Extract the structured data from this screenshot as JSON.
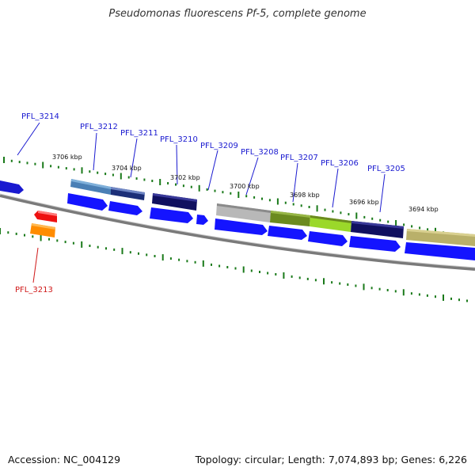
{
  "title": "Pseudomonas fluorescens Pf-5, complete genome",
  "footer": {
    "accession": "Accession: NC_004129",
    "topology": "Topology: circular; Length: 7,074,893 bp; Genes: 6,226"
  },
  "colors": {
    "backbone": "#808080",
    "tick": "#1a7a1a",
    "forward_label": "#1a1ad0",
    "reverse_label": "#d01a1a",
    "cds": "#1414ff"
  },
  "kbp_labels": [
    "3706 kbp",
    "3704 kbp",
    "3702 kbp",
    "3700 kbp",
    "3698 kbp",
    "3696 kbp",
    "3694 kbp"
  ],
  "genes": [
    {
      "id": "PFL_3214",
      "strand": "forward",
      "color": "#1a1ad0"
    },
    {
      "id": "PFL_3212",
      "strand": "forward",
      "color": "#4a7fb5"
    },
    {
      "id": "PFL_3211",
      "strand": "forward",
      "color": "#1c2f78"
    },
    {
      "id": "PFL_3210",
      "strand": "forward",
      "color": "#101060"
    },
    {
      "id": "PFL_3209",
      "strand": "forward",
      "color": "#1414ff"
    },
    {
      "id": "PFL_3208",
      "strand": "forward",
      "color": "#b8b8b8"
    },
    {
      "id": "PFL_3207",
      "strand": "forward",
      "color": "#6b8a1f"
    },
    {
      "id": "PFL_3206",
      "strand": "forward",
      "color": "#9bd82a"
    },
    {
      "id": "PFL_3205",
      "strand": "forward",
      "color": "#101060"
    },
    {
      "id": "PFL_3213",
      "strand": "reverse",
      "color": "#ee1111"
    }
  ]
}
